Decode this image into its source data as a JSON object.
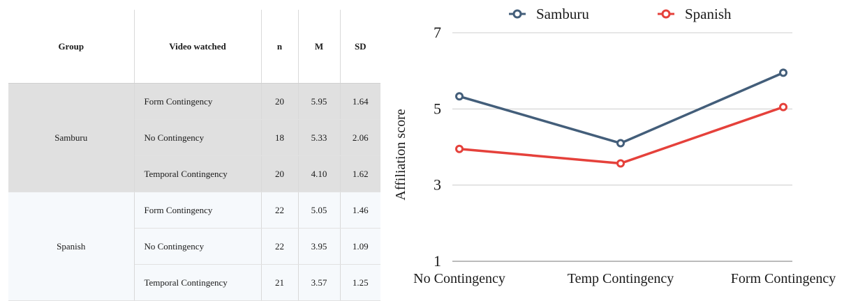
{
  "table": {
    "headers": [
      "Group",
      "Video watched",
      "n",
      "M",
      "SD"
    ],
    "groups": [
      {
        "name": "Samburu",
        "rows": [
          {
            "video": "Form Contingency",
            "n": "20",
            "m": "5.95",
            "sd": "1.64"
          },
          {
            "video": "No Contingency",
            "n": "18",
            "m": "5.33",
            "sd": "2.06"
          },
          {
            "video": "Temporal Contingency",
            "n": "20",
            "m": "4.10",
            "sd": "1.62"
          }
        ]
      },
      {
        "name": "Spanish",
        "rows": [
          {
            "video": "Form Contingency",
            "n": "22",
            "m": "5.05",
            "sd": "1.46"
          },
          {
            "video": "No Contingency",
            "n": "22",
            "m": "3.95",
            "sd": "1.09"
          },
          {
            "video": "Temporal Contingency",
            "n": "21",
            "m": "3.57",
            "sd": "1.25"
          }
        ]
      }
    ]
  },
  "colors": {
    "samburu": "#435e7a",
    "spanish": "#e5413b",
    "grid": "#cccccc",
    "group_samburu_bg": "#e0e0e0",
    "group_spanish_bg": "#f6f9fc"
  },
  "chart_data": {
    "type": "line",
    "categories": [
      "No Contingency",
      "Temp Contingency",
      "Form Contingency"
    ],
    "series": [
      {
        "name": "Samburu",
        "values": [
          5.33,
          4.1,
          5.95
        ]
      },
      {
        "name": "Spanish",
        "values": [
          3.95,
          3.57,
          5.05
        ]
      }
    ],
    "ylabel": "Affiliation score",
    "ylim": [
      1,
      7
    ],
    "yticks": [
      1,
      3,
      5,
      7
    ],
    "grid": true,
    "legend": "top"
  }
}
